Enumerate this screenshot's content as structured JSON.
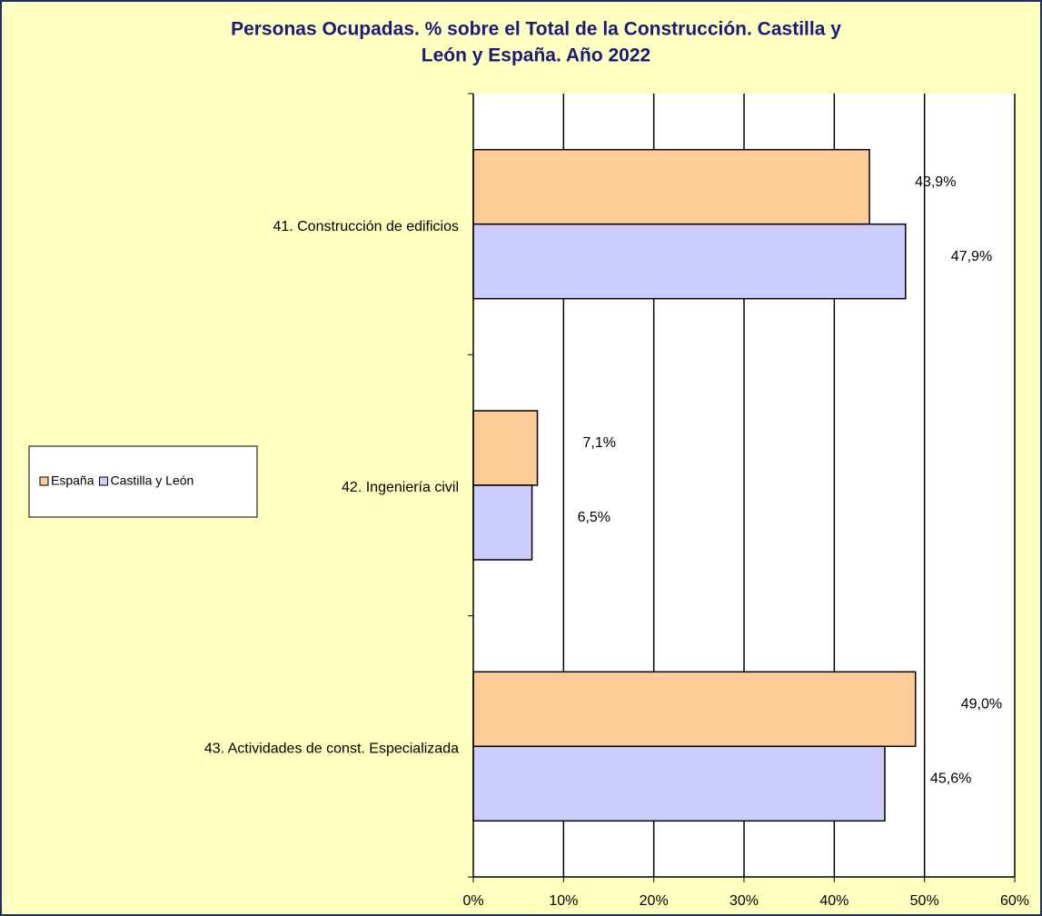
{
  "chart_data": {
    "type": "bar",
    "orientation": "horizontal",
    "title": [
      "Personas Ocupadas. % sobre el Total de la Construcción.  Castilla y",
      "León y España.  Año 2022"
    ],
    "categories": [
      "41. Construcción de edificios",
      "42. Ingeniería civil",
      "43. Actividades de const. Especializada"
    ],
    "series": [
      {
        "name": "España",
        "color": "#ffcc99",
        "values": [
          43.9,
          7.1,
          49.0
        ],
        "value_labels": [
          "43,9%",
          "7,1%",
          "49,0%"
        ]
      },
      {
        "name": "Castilla y León",
        "color": "#ccccff",
        "values": [
          47.9,
          6.5,
          45.6
        ],
        "value_labels": [
          "47,9%",
          "6,5%",
          "45,6%"
        ]
      }
    ],
    "xlim": [
      0,
      60
    ],
    "xticks": [
      {
        "value": 0,
        "label": "0%"
      },
      {
        "value": 10,
        "label": "10%"
      },
      {
        "value": 20,
        "label": "20%"
      },
      {
        "value": 30,
        "label": "30%"
      },
      {
        "value": 40,
        "label": "40%"
      },
      {
        "value": 50,
        "label": "50%"
      },
      {
        "value": 60,
        "label": "60%"
      }
    ],
    "grid": true,
    "legend": "left"
  }
}
